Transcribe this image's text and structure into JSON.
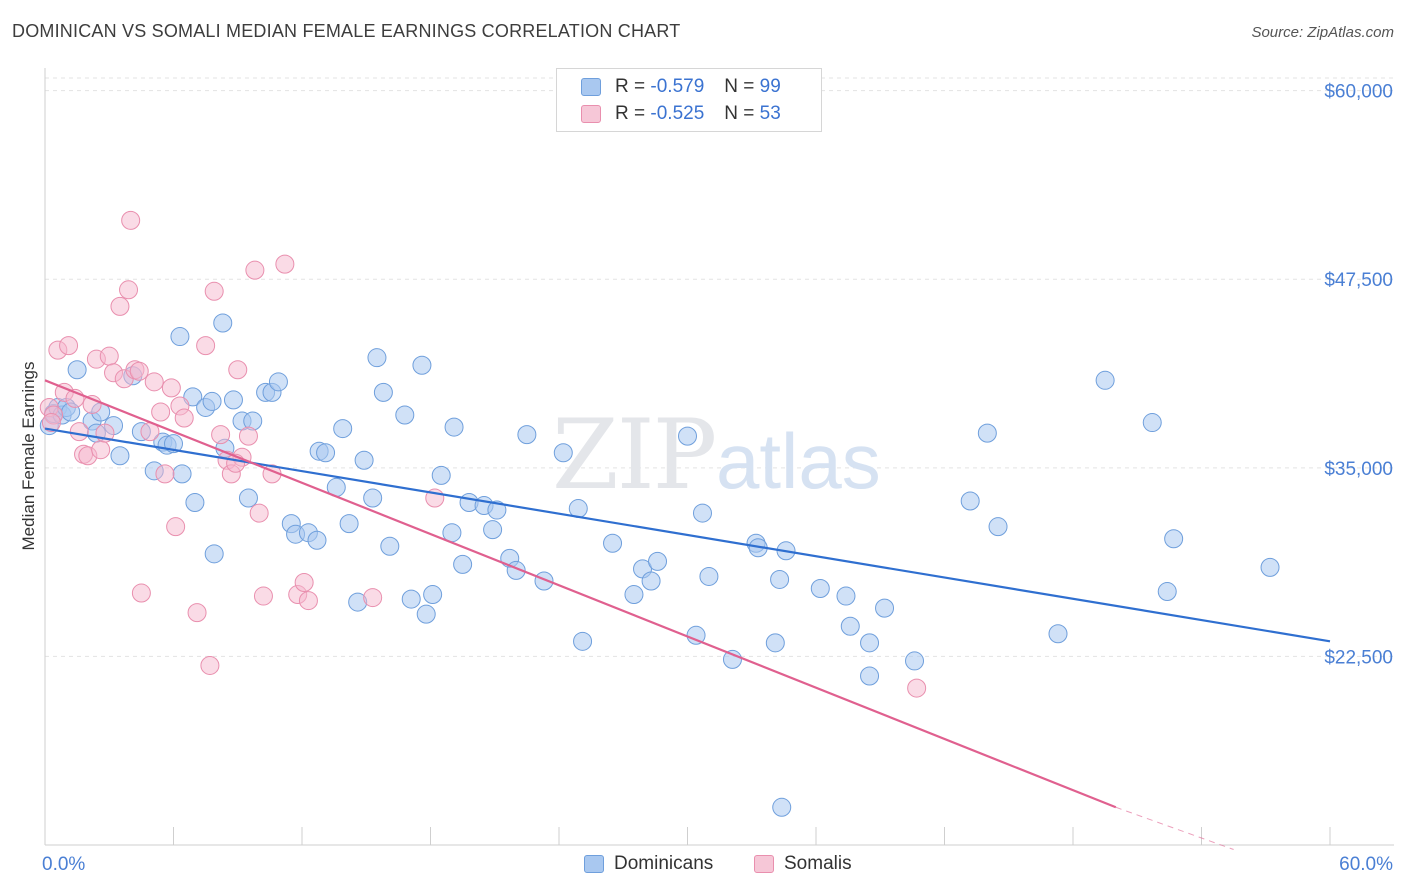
{
  "title": "DOMINICAN VS SOMALI MEDIAN FEMALE EARNINGS CORRELATION CHART",
  "source": "Source: ZipAtlas.com",
  "watermark": {
    "zip": "ZIP",
    "atlas": "atlas"
  },
  "legend": {
    "rows": [
      {
        "r_label": "R = ",
        "r_value": "-0.579",
        "n_label": "N = ",
        "n_value": "99"
      },
      {
        "r_label": "R = ",
        "r_value": "-0.525",
        "n_label": "N = ",
        "n_value": "53"
      }
    ]
  },
  "bottom_legend": [
    "Dominicans",
    "Somalis"
  ],
  "colors": {
    "dominicans_fill": "#a9c8f0",
    "dominicans_stroke": "#6f9fdc",
    "dominicans_line": "#2f6fd0",
    "somalis_fill": "#f6b8cd",
    "somalis_stroke": "#e98fae",
    "somalis_line": "#e0608f",
    "tick_label": "#4a7fd4"
  },
  "chart_data": {
    "type": "scatter",
    "title": "DOMINICAN VS SOMALI MEDIAN FEMALE EARNINGS CORRELATION CHART",
    "xlabel": "",
    "ylabel": "Median Female Earnings",
    "xlim": [
      0,
      60
    ],
    "ylim": [
      10000,
      61500
    ],
    "x_tick_labels": [
      {
        "value": 0,
        "label": "0.0%"
      },
      {
        "value": 60,
        "label": "60.0%"
      }
    ],
    "y_ticks": [
      {
        "value": 22500,
        "label": "$22,500"
      },
      {
        "value": 35000,
        "label": "$35,000"
      },
      {
        "value": 47500,
        "label": "$47,500"
      },
      {
        "value": 60000,
        "label": "$60,000"
      }
    ],
    "grid": "horizontal dashed",
    "legend_position": "top-center",
    "series": [
      {
        "name": "Dominicans",
        "R": -0.579,
        "N": 99,
        "trend": {
          "x": [
            0,
            60
          ],
          "y": [
            37600,
            23500
          ]
        },
        "points": [
          [
            0.2,
            37800
          ],
          [
            0.4,
            38600
          ],
          [
            0.6,
            39000
          ],
          [
            0.8,
            38500
          ],
          [
            1.0,
            39000
          ],
          [
            1.2,
            38700
          ],
          [
            1.5,
            41500
          ],
          [
            2.2,
            38100
          ],
          [
            2.4,
            37300
          ],
          [
            2.6,
            38700
          ],
          [
            3.2,
            37800
          ],
          [
            3.5,
            35800
          ],
          [
            4.1,
            41100
          ],
          [
            4.5,
            37400
          ],
          [
            5.1,
            34800
          ],
          [
            5.5,
            36700
          ],
          [
            5.7,
            36500
          ],
          [
            6.0,
            36600
          ],
          [
            6.3,
            43700
          ],
          [
            6.4,
            34600
          ],
          [
            6.9,
            39700
          ],
          [
            7.0,
            32700
          ],
          [
            7.5,
            39000
          ],
          [
            7.8,
            39400
          ],
          [
            7.9,
            29300
          ],
          [
            8.3,
            44600
          ],
          [
            8.4,
            36300
          ],
          [
            8.8,
            39500
          ],
          [
            9.2,
            38100
          ],
          [
            9.5,
            33000
          ],
          [
            9.7,
            38100
          ],
          [
            10.3,
            40000
          ],
          [
            10.6,
            40000
          ],
          [
            10.9,
            40700
          ],
          [
            11.5,
            31300
          ],
          [
            11.7,
            30600
          ],
          [
            12.3,
            30700
          ],
          [
            12.7,
            30200
          ],
          [
            12.8,
            36100
          ],
          [
            13.1,
            36000
          ],
          [
            13.6,
            33700
          ],
          [
            13.9,
            37600
          ],
          [
            14.2,
            31300
          ],
          [
            14.6,
            26100
          ],
          [
            14.9,
            35500
          ],
          [
            15.3,
            33000
          ],
          [
            15.5,
            42300
          ],
          [
            15.8,
            40000
          ],
          [
            16.1,
            29800
          ],
          [
            16.8,
            38500
          ],
          [
            17.1,
            26300
          ],
          [
            17.6,
            41800
          ],
          [
            17.8,
            25300
          ],
          [
            18.1,
            26600
          ],
          [
            18.5,
            34500
          ],
          [
            19.0,
            30700
          ],
          [
            19.1,
            37700
          ],
          [
            19.5,
            28600
          ],
          [
            19.8,
            32700
          ],
          [
            20.5,
            32500
          ],
          [
            20.9,
            30900
          ],
          [
            21.1,
            32200
          ],
          [
            21.7,
            29000
          ],
          [
            22.0,
            28200
          ],
          [
            22.5,
            37200
          ],
          [
            23.3,
            27500
          ],
          [
            24.2,
            36000
          ],
          [
            24.9,
            32300
          ],
          [
            25.1,
            23500
          ],
          [
            26.5,
            30000
          ],
          [
            27.5,
            26600
          ],
          [
            27.9,
            28300
          ],
          [
            28.3,
            27500
          ],
          [
            28.6,
            28800
          ],
          [
            30.0,
            37100
          ],
          [
            30.4,
            23900
          ],
          [
            30.7,
            32000
          ],
          [
            31.0,
            27800
          ],
          [
            32.1,
            22300
          ],
          [
            33.2,
            30000
          ],
          [
            33.3,
            29700
          ],
          [
            34.1,
            23400
          ],
          [
            34.3,
            27600
          ],
          [
            34.6,
            29500
          ],
          [
            36.2,
            27000
          ],
          [
            37.4,
            26500
          ],
          [
            37.6,
            24500
          ],
          [
            38.5,
            23400
          ],
          [
            38.5,
            21200
          ],
          [
            39.2,
            25700
          ],
          [
            40.6,
            22200
          ],
          [
            43.2,
            32800
          ],
          [
            44.0,
            37300
          ],
          [
            44.5,
            31100
          ],
          [
            47.3,
            24000
          ],
          [
            49.5,
            40800
          ],
          [
            51.7,
            38000
          ],
          [
            52.4,
            26800
          ],
          [
            52.7,
            30300
          ],
          [
            57.2,
            28400
          ],
          [
            34.4,
            12500
          ]
        ]
      },
      {
        "name": "Somalis",
        "R": -0.525,
        "N": 53,
        "trend": {
          "x": [
            0,
            50
          ],
          "y": [
            40800,
            12500
          ]
        },
        "trend_dashed_extension": {
          "x": [
            50,
            55.5
          ],
          "y": [
            12500,
            9700
          ]
        },
        "points": [
          [
            0.2,
            39000
          ],
          [
            0.4,
            38500
          ],
          [
            0.6,
            42800
          ],
          [
            0.9,
            40000
          ],
          [
            1.1,
            43100
          ],
          [
            1.4,
            39600
          ],
          [
            1.6,
            37400
          ],
          [
            1.8,
            35900
          ],
          [
            2.0,
            35800
          ],
          [
            2.2,
            39200
          ],
          [
            2.4,
            42200
          ],
          [
            2.6,
            36200
          ],
          [
            2.8,
            37300
          ],
          [
            3.0,
            42400
          ],
          [
            3.2,
            41300
          ],
          [
            3.5,
            45700
          ],
          [
            3.7,
            40900
          ],
          [
            3.9,
            46800
          ],
          [
            4.0,
            51400
          ],
          [
            4.2,
            41500
          ],
          [
            4.4,
            41400
          ],
          [
            4.5,
            26700
          ],
          [
            4.9,
            37400
          ],
          [
            5.1,
            40700
          ],
          [
            5.4,
            38700
          ],
          [
            5.6,
            34600
          ],
          [
            5.9,
            40300
          ],
          [
            6.1,
            31100
          ],
          [
            6.3,
            39100
          ],
          [
            6.5,
            38300
          ],
          [
            7.1,
            25400
          ],
          [
            7.5,
            43100
          ],
          [
            7.7,
            21900
          ],
          [
            7.9,
            46700
          ],
          [
            8.2,
            37200
          ],
          [
            8.5,
            35500
          ],
          [
            8.7,
            34600
          ],
          [
            9.0,
            41500
          ],
          [
            9.2,
            35700
          ],
          [
            9.5,
            37100
          ],
          [
            9.8,
            48100
          ],
          [
            10.0,
            32000
          ],
          [
            10.2,
            26500
          ],
          [
            10.6,
            34600
          ],
          [
            11.2,
            48500
          ],
          [
            11.8,
            26600
          ],
          [
            12.1,
            27400
          ],
          [
            12.3,
            26200
          ],
          [
            15.3,
            26400
          ],
          [
            18.2,
            33000
          ],
          [
            40.7,
            20400
          ],
          [
            0.3,
            38000
          ],
          [
            8.9,
            35300
          ]
        ]
      }
    ]
  }
}
